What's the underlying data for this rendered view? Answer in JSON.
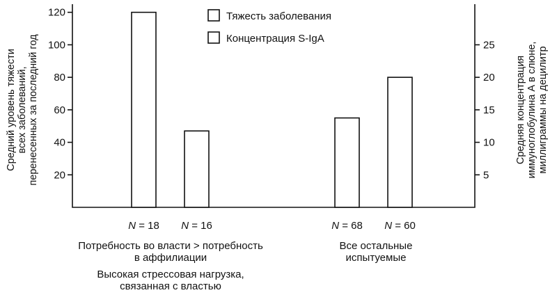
{
  "chart_data": {
    "type": "bar",
    "legend": {
      "position": "top-center",
      "entries": [
        "Тяжесть заболевания",
        "Концентрация S-IgA"
      ]
    },
    "y_left": {
      "label_lines": [
        "Средний уровень тяжести",
        "всех заболеваний,",
        "перенесенных за последний год"
      ],
      "ticks": [
        "20",
        "40",
        "60",
        "80",
        "100",
        "120"
      ],
      "ylim": [
        0,
        125
      ]
    },
    "y_right": {
      "label_lines": [
        "Средняя концентрация",
        "иммуноглобулина А в слюне,",
        "миллиграммы на децилитр"
      ],
      "ticks": [
        "5",
        "10",
        "15",
        "20",
        "25"
      ],
      "ylim": [
        0,
        31.25
      ]
    },
    "groups": [
      {
        "label_lines": [
          "Потребность во власти > потребность",
          "в аффилиации"
        ],
        "sublabel_lines": [
          "Высокая стрессовая нагрузка,",
          "связанная с властью"
        ],
        "bars": [
          {
            "series": "Тяжесть заболевания",
            "axis": "left",
            "value": 120,
            "n_label": "N = 18"
          },
          {
            "series": "Концентрация S-IgA",
            "axis": "right",
            "value": 11.75,
            "n_label": "N = 16"
          }
        ]
      },
      {
        "label_lines": [
          "Все остальные",
          "испытуемые"
        ],
        "sublabel_lines": [],
        "bars": [
          {
            "series": "Тяжесть заболевания",
            "axis": "left",
            "value": 55,
            "n_label": "N = 68"
          },
          {
            "series": "Концентрация S-IgA",
            "axis": "right",
            "value": 20,
            "n_label": "N = 60"
          }
        ]
      }
    ]
  }
}
